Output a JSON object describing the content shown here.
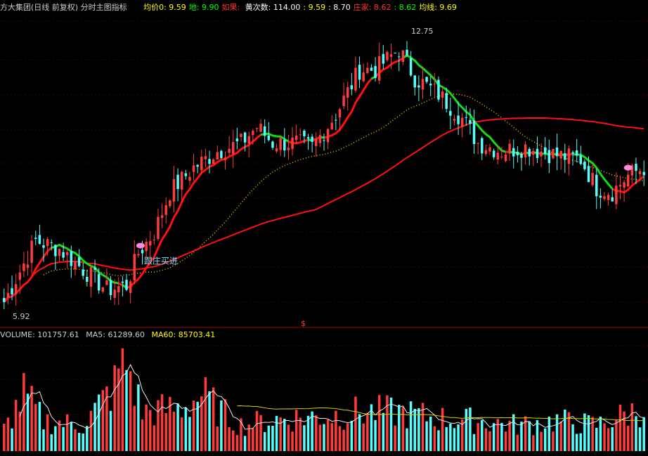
{
  "header": {
    "title": "方大集团(日线 前复权) 分时主图指标",
    "items": [
      {
        "label": "均价0: ",
        "value": "9.59",
        "color": "#ffff00"
      },
      {
        "label": "地: ",
        "value": "9.90",
        "color": "#00ff00"
      },
      {
        "label": "如果: ",
        "value": "",
        "color": "#ff3030"
      },
      {
        "label": "黄次数: ",
        "value": "114.00",
        "color": "#ffffff"
      },
      {
        "label": ": ",
        "value": "9.59",
        "color": "#ffff00"
      },
      {
        "label": ": ",
        "value": "8.70",
        "color": "#ffffff"
      },
      {
        "label": "庄家: ",
        "value": "8.62",
        "color": "#ff3030"
      },
      {
        "label": ": ",
        "value": "8.62",
        "color": "#00ff00"
      },
      {
        "label": "均线: ",
        "value": "9.69",
        "color": "#ffff00"
      }
    ]
  },
  "volume_header": {
    "volume_label": "VOLUME: ",
    "volume_value": "101757.61",
    "ma5_label": "MA5: ",
    "ma5_value": "61289.60",
    "ma60_label": "MA60: ",
    "ma60_value": "85703.41"
  },
  "annotations": {
    "high_label": "12.75",
    "low_label": "5.92",
    "signal_text": "跟庄买进",
    "marker_symbol": "$"
  },
  "colors": {
    "up": "#ff3b3b",
    "down": "#54ffff",
    "ma_main": "#ff1010",
    "ma_green": "#11dd11",
    "ma_yellow_dotted": "#d4d400",
    "ma5_vol": "#ffffff",
    "ma60_vol": "#d4d400",
    "grid": "#8b0000",
    "bg": "#000000"
  },
  "chart_data": {
    "type": "candlestick",
    "ylim": [
      5.92,
      12.75
    ],
    "high": 12.75,
    "low": 5.92,
    "control_points_close": [
      [
        0,
        6.1
      ],
      [
        8,
        7.6
      ],
      [
        14,
        7.4
      ],
      [
        20,
        6.9
      ],
      [
        26,
        6.4
      ],
      [
        31,
        6.5
      ],
      [
        34,
        7.3
      ],
      [
        38,
        7.8
      ],
      [
        42,
        8.8
      ],
      [
        48,
        9.4
      ],
      [
        54,
        9.8
      ],
      [
        60,
        10.0
      ],
      [
        64,
        10.4
      ],
      [
        68,
        10.0
      ],
      [
        74,
        10.0
      ],
      [
        78,
        9.9
      ],
      [
        84,
        10.7
      ],
      [
        90,
        11.8
      ],
      [
        94,
        11.8
      ],
      [
        100,
        12.3
      ],
      [
        104,
        11.6
      ],
      [
        110,
        11.2
      ],
      [
        116,
        10.6
      ],
      [
        120,
        10.0
      ],
      [
        126,
        9.8
      ],
      [
        132,
        9.9
      ],
      [
        140,
        9.7
      ],
      [
        146,
        9.6
      ],
      [
        150,
        8.9
      ],
      [
        154,
        8.8
      ],
      [
        158,
        9.2
      ],
      [
        162,
        9.4
      ]
    ],
    "candle_count": 163,
    "buy_signal_index": 34,
    "highlight_index": 158
  },
  "volume_data": {
    "ylim": [
      0,
      250000
    ],
    "control_points": [
      [
        0,
        50000
      ],
      [
        5,
        130000
      ],
      [
        10,
        70000
      ],
      [
        20,
        60000
      ],
      [
        28,
        150000
      ],
      [
        30,
        230000
      ],
      [
        35,
        90000
      ],
      [
        45,
        100000
      ],
      [
        50,
        130000
      ],
      [
        55,
        90000
      ],
      [
        60,
        60000
      ],
      [
        70,
        75000
      ],
      [
        80,
        80000
      ],
      [
        90,
        90000
      ],
      [
        100,
        90000
      ],
      [
        110,
        75000
      ],
      [
        120,
        70000
      ],
      [
        130,
        60000
      ],
      [
        140,
        70000
      ],
      [
        150,
        60000
      ],
      [
        162,
        100000
      ]
    ]
  }
}
